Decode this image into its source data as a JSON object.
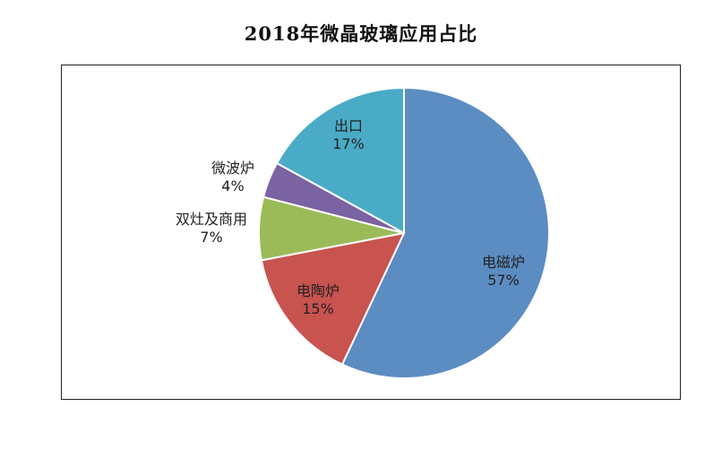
{
  "chart_data": {
    "type": "pie",
    "title": "2018年微晶玻璃应用占比",
    "slices": [
      {
        "label": "电磁炉",
        "value": 57,
        "value_label": "57%",
        "color": "#5b8cc2"
      },
      {
        "label": "电陶炉",
        "value": 15,
        "value_label": "15%",
        "color": "#c8534f"
      },
      {
        "label": "双灶及商用",
        "value": 7,
        "value_label": "7%",
        "color": "#9bbb59"
      },
      {
        "label": "微波炉",
        "value": 4,
        "value_label": "4%",
        "color": "#7b62a3"
      },
      {
        "label": "出口",
        "value": 17,
        "value_label": "17%",
        "color": "#4aabc6"
      }
    ],
    "start_angle_deg": 0,
    "direction": "clockwise",
    "border": true
  }
}
